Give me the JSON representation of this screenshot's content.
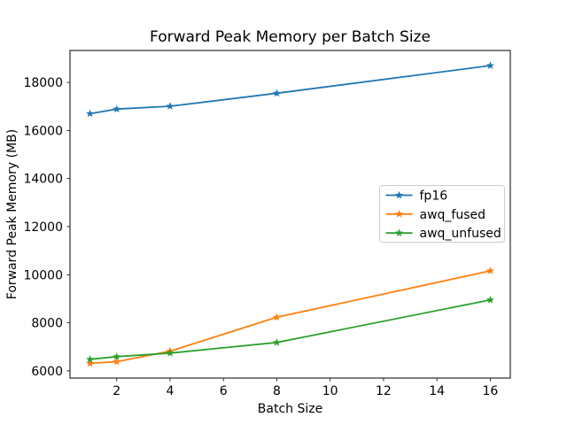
{
  "figure": {
    "title": "Forward Peak Memory per Batch Size",
    "background_color": "#ffffff"
  },
  "chart_data": {
    "type": "line",
    "title": "Forward Peak Memory per Batch Size",
    "xlabel": "Batch Size",
    "ylabel": "Forward Peak Memory (MB)",
    "x": [
      1,
      2,
      4,
      8,
      16
    ],
    "series": [
      {
        "name": "fp16",
        "color": "#1f77b4",
        "marker": "star",
        "values": [
          16700,
          16890,
          17010,
          17550,
          18700
        ]
      },
      {
        "name": "awq_fused",
        "color": "#ff7f0e",
        "marker": "star",
        "values": [
          6310,
          6380,
          6820,
          8230,
          10160
        ]
      },
      {
        "name": "awq_unfused",
        "color": "#2ca02c",
        "marker": "star",
        "values": [
          6480,
          6590,
          6740,
          7180,
          8950
        ]
      }
    ],
    "xticks": [
      2,
      4,
      6,
      8,
      10,
      12,
      14,
      16
    ],
    "yticks": [
      6000,
      8000,
      10000,
      12000,
      14000,
      16000,
      18000
    ],
    "xlim": [
      0.25,
      16.75
    ],
    "ylim": [
      5700,
      19330
    ],
    "grid": false,
    "legend_position": "center right",
    "frame_color": "#000000",
    "legend_border_color": "#cccccc"
  }
}
